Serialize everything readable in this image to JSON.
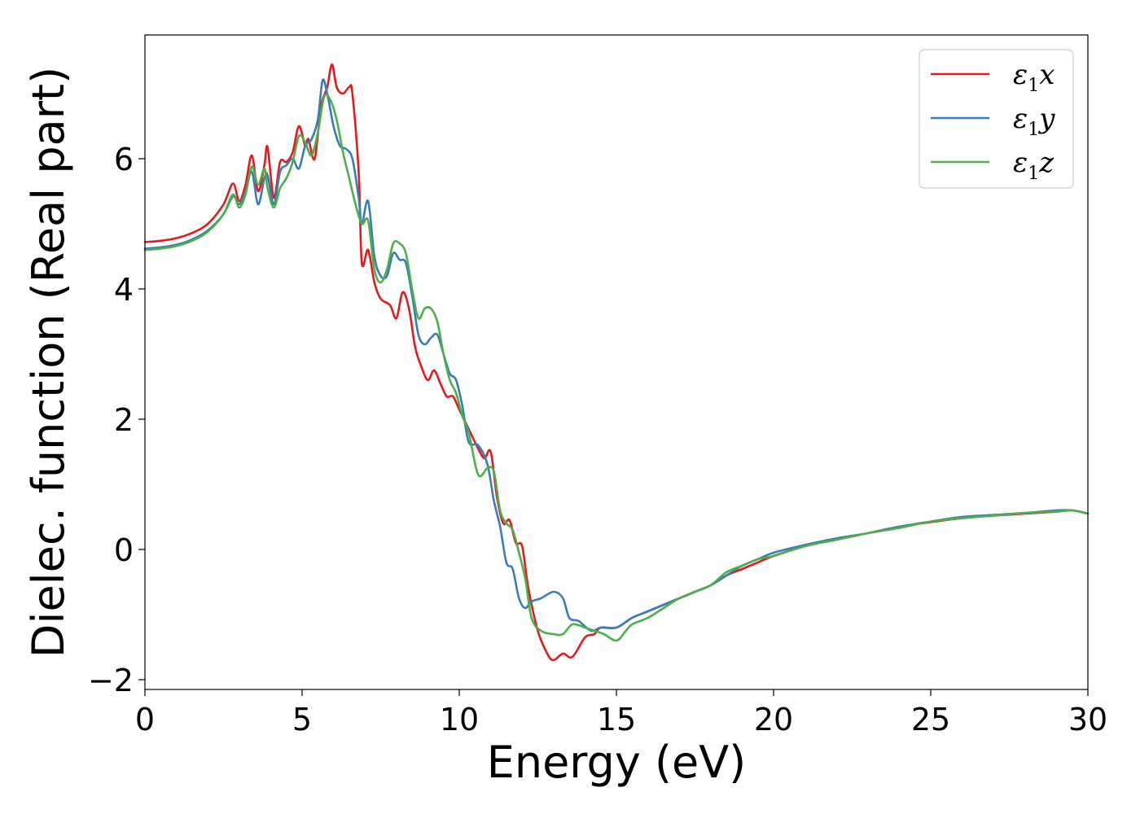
{
  "chart_data": {
    "type": "line",
    "title": "",
    "xlabel": "Energy (eV)",
    "ylabel": "Dielec. function (Real part)",
    "xlim": [
      0,
      30
    ],
    "ylim": [
      -2.15,
      7.9
    ],
    "xticks": [
      0,
      5,
      10,
      15,
      20,
      25,
      30
    ],
    "xtick_labels": [
      "0",
      "5",
      "10",
      "15",
      "20",
      "25",
      "30"
    ],
    "yticks": [
      -2,
      0,
      2,
      4,
      6
    ],
    "ytick_labels": [
      "−2",
      "0",
      "2",
      "4",
      "6"
    ],
    "grid": false,
    "legend_position": "top-right",
    "series": [
      {
        "name": "ε₁x",
        "legend_base": "ε",
        "legend_sub": "1",
        "legend_var": "x",
        "color": "#e41a1c",
        "x": [
          0,
          0.5,
          1,
          1.5,
          2,
          2.5,
          2.8,
          3.0,
          3.2,
          3.4,
          3.6,
          3.8,
          3.9,
          4.1,
          4.3,
          4.5,
          4.7,
          4.9,
          5.1,
          5.2,
          5.4,
          5.6,
          5.8,
          5.95,
          6.1,
          6.3,
          6.5,
          6.6,
          6.8,
          6.9,
          7.1,
          7.3,
          7.5,
          7.8,
          8.0,
          8.2,
          8.4,
          8.6,
          8.8,
          9.0,
          9.2,
          9.4,
          9.6,
          9.8,
          10.0,
          10.3,
          10.6,
          10.8,
          11.0,
          11.2,
          11.4,
          11.6,
          11.8,
          12.0,
          12.2,
          12.5,
          12.8,
          13.0,
          13.3,
          13.6,
          14.0,
          14.3,
          14.5,
          15.0,
          15.5,
          16.0,
          16.5,
          17.0,
          17.5,
          18.0,
          18.5,
          19.0,
          19.5,
          20,
          21,
          22,
          23,
          24,
          25,
          26,
          27,
          28,
          29,
          29.5,
          30
        ],
        "y": [
          4.72,
          4.74,
          4.78,
          4.86,
          5.0,
          5.3,
          5.62,
          5.35,
          5.6,
          6.05,
          5.5,
          5.9,
          6.18,
          5.4,
          5.95,
          5.95,
          6.1,
          6.5,
          6.2,
          6.3,
          6.0,
          6.8,
          7.1,
          7.45,
          7.1,
          7.0,
          7.1,
          7.0,
          5.8,
          4.4,
          4.6,
          4.1,
          3.85,
          3.75,
          3.55,
          3.95,
          3.7,
          3.1,
          2.8,
          2.6,
          2.75,
          2.55,
          2.35,
          2.35,
          2.15,
          1.85,
          1.55,
          1.4,
          1.5,
          0.8,
          0.4,
          0.45,
          0.1,
          0.05,
          -0.6,
          -1.25,
          -1.6,
          -1.7,
          -1.6,
          -1.65,
          -1.35,
          -1.3,
          -1.2,
          -1.2,
          -1.05,
          -0.95,
          -0.85,
          -0.75,
          -0.65,
          -0.55,
          -0.4,
          -0.3,
          -0.2,
          -0.1,
          0.05,
          0.15,
          0.25,
          0.35,
          0.42,
          0.48,
          0.52,
          0.55,
          0.58,
          0.6,
          0.55
        ]
      },
      {
        "name": "ε₁y",
        "legend_base": "ε",
        "legend_sub": "1",
        "legend_var": "y",
        "color": "#377eb8",
        "x": [
          0,
          0.5,
          1,
          1.5,
          2,
          2.5,
          2.8,
          3.0,
          3.2,
          3.4,
          3.6,
          3.8,
          3.9,
          4.1,
          4.3,
          4.5,
          4.7,
          4.9,
          5.1,
          5.3,
          5.5,
          5.65,
          5.8,
          6.0,
          6.2,
          6.4,
          6.6,
          6.8,
          6.9,
          7.1,
          7.3,
          7.5,
          7.7,
          7.9,
          8.1,
          8.3,
          8.5,
          8.7,
          8.9,
          9.1,
          9.3,
          9.5,
          9.7,
          9.9,
          10.1,
          10.3,
          10.6,
          10.9,
          11.1,
          11.3,
          11.5,
          11.7,
          11.9,
          12.1,
          12.3,
          12.6,
          13.0,
          13.3,
          13.5,
          13.8,
          14.2,
          14.5,
          15.0,
          15.5,
          16.0,
          16.5,
          17.0,
          17.5,
          18.0,
          18.5,
          19.0,
          19.5,
          20,
          21,
          22,
          23,
          24,
          25,
          26,
          27,
          28,
          29,
          29.5,
          30
        ],
        "y": [
          4.62,
          4.64,
          4.68,
          4.76,
          4.9,
          5.15,
          5.42,
          5.3,
          5.5,
          5.8,
          5.3,
          5.7,
          5.75,
          5.3,
          5.8,
          5.9,
          6.0,
          5.85,
          6.2,
          6.3,
          6.6,
          7.2,
          7.0,
          6.5,
          6.2,
          6.15,
          6.0,
          5.4,
          5.0,
          5.35,
          4.5,
          4.2,
          4.2,
          4.55,
          4.45,
          4.4,
          3.9,
          3.3,
          3.15,
          3.25,
          3.3,
          3.0,
          2.7,
          2.6,
          2.2,
          1.65,
          1.6,
          1.3,
          0.75,
          0.35,
          -0.2,
          -0.3,
          -0.75,
          -0.9,
          -0.8,
          -0.75,
          -0.65,
          -0.75,
          -1.05,
          -1.1,
          -1.25,
          -1.2,
          -1.2,
          -1.05,
          -0.95,
          -0.85,
          -0.75,
          -0.65,
          -0.55,
          -0.4,
          -0.25,
          -0.15,
          -0.05,
          0.07,
          0.17,
          0.25,
          0.35,
          0.43,
          0.5,
          0.53,
          0.56,
          0.6,
          0.6,
          0.55
        ]
      },
      {
        "name": "ε₁z",
        "legend_base": "ε",
        "legend_sub": "1",
        "legend_var": "z",
        "color": "#4daf4a",
        "x": [
          0,
          0.5,
          1,
          1.5,
          2,
          2.5,
          2.8,
          3.0,
          3.2,
          3.4,
          3.6,
          3.8,
          3.9,
          4.1,
          4.3,
          4.5,
          4.7,
          4.9,
          5.1,
          5.3,
          5.5,
          5.7,
          5.9,
          6.1,
          6.3,
          6.5,
          6.7,
          6.9,
          7.1,
          7.3,
          7.5,
          7.7,
          7.9,
          8.1,
          8.3,
          8.5,
          8.7,
          8.9,
          9.1,
          9.3,
          9.5,
          9.7,
          9.9,
          10.1,
          10.3,
          10.6,
          10.9,
          11.1,
          11.3,
          11.5,
          11.7,
          11.9,
          12.1,
          12.3,
          12.6,
          13.0,
          13.3,
          13.6,
          14.0,
          14.3,
          14.6,
          15.0,
          15.3,
          15.5,
          16.0,
          16.5,
          17.0,
          17.5,
          18.0,
          18.5,
          19.0,
          19.5,
          20,
          21,
          22,
          23,
          24,
          25,
          26,
          27,
          28,
          29,
          29.5,
          30
        ],
        "y": [
          4.6,
          4.62,
          4.66,
          4.74,
          4.88,
          5.15,
          5.45,
          5.25,
          5.45,
          5.88,
          5.6,
          5.85,
          5.55,
          5.25,
          5.55,
          5.7,
          5.95,
          6.35,
          6.25,
          6.05,
          6.4,
          6.95,
          6.9,
          6.6,
          6.1,
          5.7,
          5.3,
          5.0,
          5.05,
          4.3,
          4.1,
          4.3,
          4.7,
          4.7,
          4.55,
          4.0,
          3.55,
          3.7,
          3.7,
          3.5,
          3.0,
          2.6,
          2.4,
          2.05,
          1.8,
          1.15,
          1.25,
          1.2,
          0.6,
          0.4,
          0.3,
          -0.05,
          -0.45,
          -1.05,
          -1.25,
          -1.3,
          -1.3,
          -1.15,
          -1.2,
          -1.25,
          -1.3,
          -1.4,
          -1.25,
          -1.15,
          -1.05,
          -0.9,
          -0.75,
          -0.65,
          -0.55,
          -0.35,
          -0.25,
          -0.15,
          -0.1,
          0.05,
          0.15,
          0.25,
          0.33,
          0.43,
          0.48,
          0.52,
          0.56,
          0.58,
          0.6,
          0.55
        ]
      }
    ]
  }
}
